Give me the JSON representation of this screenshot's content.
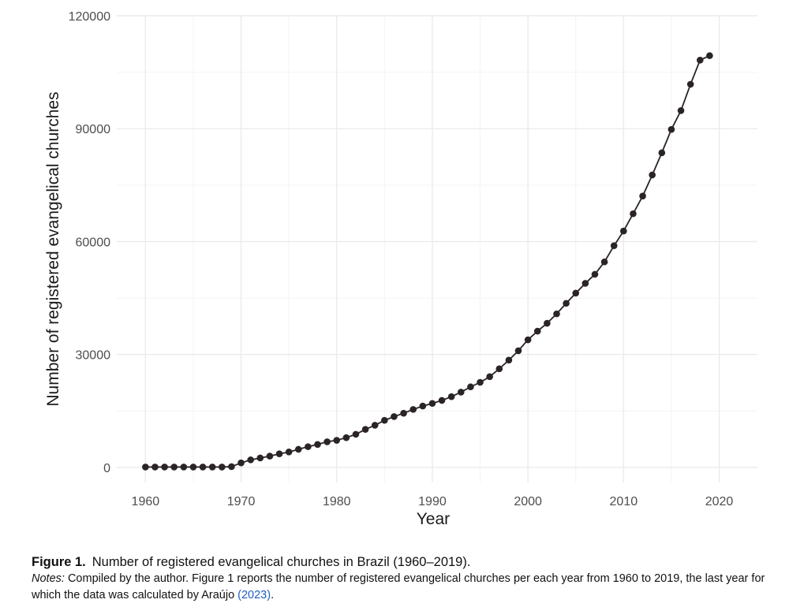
{
  "chart_data": {
    "type": "line",
    "xlabel": "Year",
    "ylabel": "Number of registered evangelical churches",
    "xlim": [
      1957,
      2024
    ],
    "ylim": [
      -4000,
      120000
    ],
    "x_ticks": [
      1960,
      1970,
      1980,
      1990,
      2000,
      2010,
      2020
    ],
    "y_ticks": [
      0,
      30000,
      60000,
      90000,
      120000
    ],
    "x_tick_labels": [
      "1960",
      "1970",
      "1980",
      "1990",
      "2000",
      "2010",
      "2020"
    ],
    "y_tick_labels": [
      "0",
      "30000",
      "60000",
      "90000",
      "120000"
    ],
    "grid": true,
    "legend": "none",
    "line_color": "#2b2426",
    "series": [
      {
        "x": [
          1960,
          1961,
          1962,
          1963,
          1964,
          1965,
          1966,
          1967,
          1968,
          1969,
          1970,
          1971,
          1972,
          1973,
          1974,
          1975,
          1976,
          1977,
          1978,
          1979,
          1980,
          1981,
          1982,
          1983,
          1984,
          1985,
          1986,
          1987,
          1988,
          1989,
          1990,
          1991,
          1992,
          1993,
          1994,
          1995,
          1996,
          1997,
          1998,
          1999,
          2000,
          2001,
          2002,
          2003,
          2004,
          2005,
          2006,
          2007,
          2008,
          2009,
          2010,
          2011,
          2012,
          2013,
          2014,
          2015,
          2016,
          2017,
          2018,
          2019
        ],
        "values": [
          100,
          100,
          100,
          100,
          100,
          100,
          100,
          100,
          100,
          200,
          1200,
          2000,
          2500,
          3000,
          3600,
          4100,
          4800,
          5500,
          6100,
          6800,
          7200,
          7900,
          8800,
          10100,
          11200,
          12500,
          13500,
          14400,
          15400,
          16300,
          17000,
          17800,
          18800,
          20000,
          21400,
          22600,
          24100,
          26200,
          28500,
          31000,
          33900,
          36200,
          38300,
          40800,
          43600,
          46300,
          48900,
          51300,
          54600,
          58900,
          62800,
          67400,
          72100,
          77700,
          83600,
          89800,
          94800,
          101800,
          108200,
          109400
        ]
      }
    ]
  },
  "caption": {
    "figure_label": "Figure 1.",
    "figure_title": "Number of registered evangelical churches in Brazil (1960–2019).",
    "notes_label": "Notes:",
    "notes_text": " Compiled by the author. Figure 1 reports the number of registered evangelical churches per each year from 1960 to 2019, the last year for which the data was calculated by Araújo ",
    "notes_ref": "(2023)",
    "notes_end": "."
  }
}
